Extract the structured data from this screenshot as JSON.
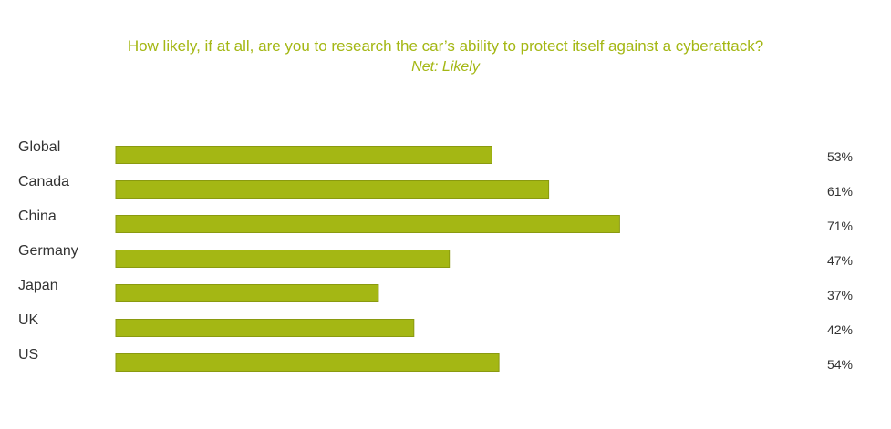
{
  "colors": {
    "accent": "#a4b714",
    "bar_stroke": "#8a9a10",
    "text": "#333333"
  },
  "chart_data": {
    "type": "bar",
    "orientation": "horizontal",
    "title": "How likely, if at all, are you to research the car’s ability to protect itself against a cyberattack?",
    "subtitle": "Net: Likely",
    "categories": [
      "Global",
      "Canada",
      "China",
      "Germany",
      "Japan",
      "UK",
      "US"
    ],
    "values": [
      53,
      61,
      71,
      47,
      37,
      42,
      54
    ],
    "value_labels": [
      "53%",
      "61%",
      "71%",
      "47%",
      "37%",
      "42%",
      "54%"
    ],
    "xlim": [
      0,
      100
    ],
    "grid": false,
    "legend": "none"
  }
}
